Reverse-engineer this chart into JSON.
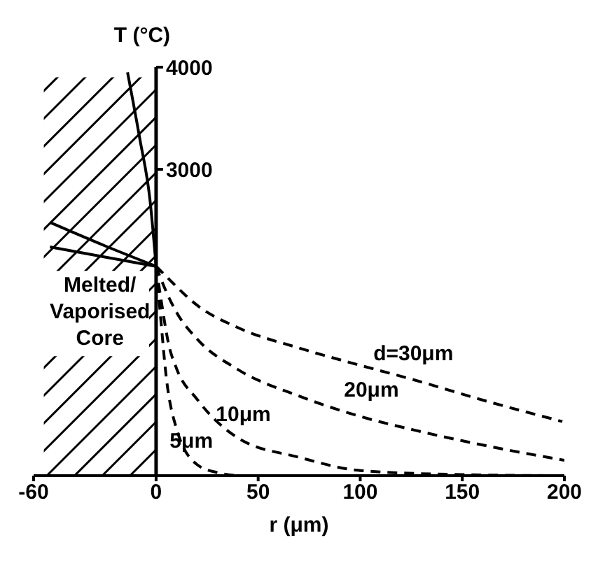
{
  "chart_data": {
    "type": "line",
    "xlabel": "r (μm)",
    "ylabel": "T (°C)",
    "xlim": [
      -60,
      200
    ],
    "xticks": [
      -60,
      0,
      50,
      100,
      150,
      200
    ],
    "ylim": [
      0,
      4000
    ],
    "yticks": [
      3000,
      4000
    ],
    "grid": false,
    "legend": false,
    "marker": "none",
    "bands": [
      {
        "axis": "x",
        "from": -55,
        "to": 0,
        "label": "Melted/ Vaporised Core",
        "color": "#000000"
      }
    ],
    "series": [
      {
        "name": "d=30μm",
        "color": "#000000",
        "line_style": "dashed",
        "x": [
          0,
          5,
          10,
          20,
          40,
          70,
          100,
          126,
          160,
          199
        ],
        "values": [
          2050,
          1950,
          1850,
          1670,
          1450,
          1250,
          1080,
          940,
          740,
          530
        ]
      },
      {
        "name": "20μm",
        "color": "#000000",
        "line_style": "dashed",
        "x": [
          0,
          5,
          10,
          20,
          40,
          70,
          100,
          130,
          165,
          200
        ],
        "values": [
          2050,
          1800,
          1600,
          1340,
          1040,
          780,
          580,
          430,
          280,
          150
        ]
      },
      {
        "name": "10μm",
        "color": "#000000",
        "line_style": "dashed",
        "x": [
          0,
          3,
          6,
          10,
          20,
          40,
          70,
          100,
          150,
          200
        ],
        "values": [
          2050,
          1650,
          1300,
          1050,
          750,
          370,
          180,
          50,
          10,
          0
        ]
      },
      {
        "name": "5μm",
        "color": "#000000",
        "line_style": "dashed",
        "x": [
          0,
          2,
          5,
          10,
          20,
          30,
          40
        ],
        "values": [
          2050,
          1600,
          960,
          460,
          110,
          30,
          0
        ]
      },
      {
        "color": "#000000",
        "line_style": "solid",
        "x": [
          -14,
          -8,
          -3,
          0
        ],
        "values": [
          3950,
          3300,
          2700,
          2050
        ]
      },
      {
        "color": "#000000",
        "line_style": "solid",
        "x": [
          -52,
          -25,
          0
        ],
        "values": [
          2480,
          2250,
          2050
        ]
      },
      {
        "color": "#000000",
        "line_style": "solid",
        "x": [
          -52,
          -25,
          0
        ],
        "values": [
          2240,
          2140,
          2050
        ]
      }
    ]
  }
}
